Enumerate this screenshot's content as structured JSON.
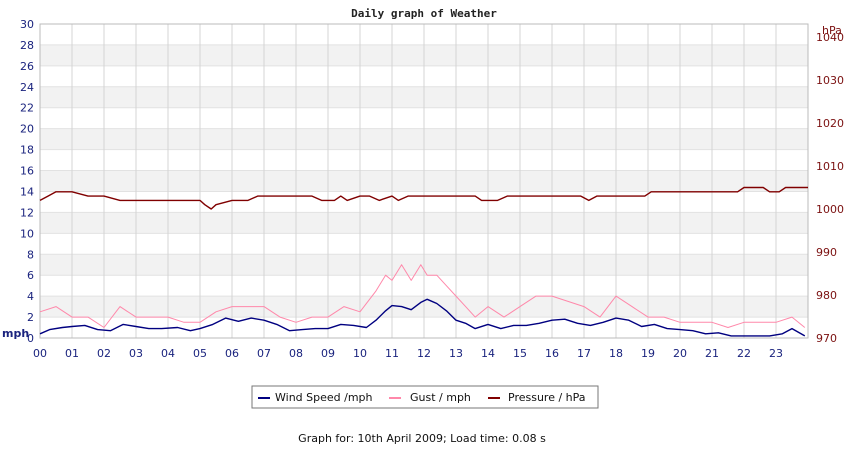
{
  "chart_data": {
    "type": "line",
    "title": "Daily graph of Weather",
    "y_left": {
      "unit": "mph",
      "range": [
        0,
        30
      ],
      "ticks": [
        0,
        2,
        4,
        6,
        8,
        10,
        12,
        14,
        16,
        18,
        20,
        22,
        24,
        26,
        28,
        30
      ]
    },
    "y_right": {
      "unit": "hPa",
      "range": [
        970,
        1043
      ],
      "ticks": [
        970,
        980,
        990,
        1000,
        1010,
        1020,
        1030,
        1040
      ]
    },
    "x_axis": {
      "unit": "hour",
      "range": [
        0,
        24
      ],
      "tick_labels": [
        "00",
        "01",
        "02",
        "03",
        "04",
        "05",
        "06",
        "07",
        "08",
        "09",
        "10",
        "11",
        "12",
        "13",
        "14",
        "15",
        "16",
        "17",
        "18",
        "19",
        "20",
        "21",
        "22",
        "23"
      ]
    },
    "grid": true,
    "legend_position": "bottom",
    "series": [
      {
        "name": "Wind Speed /mph",
        "axis": "left",
        "color": "#000080",
        "points": [
          [
            0,
            0.4
          ],
          [
            0.3,
            0.8
          ],
          [
            0.7,
            1.0
          ],
          [
            1.0,
            1.1
          ],
          [
            1.4,
            1.2
          ],
          [
            1.8,
            0.8
          ],
          [
            2.2,
            0.7
          ],
          [
            2.6,
            1.3
          ],
          [
            3.0,
            1.1
          ],
          [
            3.4,
            0.9
          ],
          [
            3.8,
            0.9
          ],
          [
            4.3,
            1.0
          ],
          [
            4.7,
            0.7
          ],
          [
            5.0,
            0.9
          ],
          [
            5.4,
            1.3
          ],
          [
            5.8,
            1.9
          ],
          [
            6.2,
            1.6
          ],
          [
            6.6,
            1.9
          ],
          [
            7.0,
            1.7
          ],
          [
            7.4,
            1.3
          ],
          [
            7.8,
            0.7
          ],
          [
            8.2,
            0.8
          ],
          [
            8.6,
            0.9
          ],
          [
            9.0,
            0.9
          ],
          [
            9.4,
            1.3
          ],
          [
            9.8,
            1.2
          ],
          [
            10.2,
            1.0
          ],
          [
            10.5,
            1.7
          ],
          [
            10.8,
            2.6
          ],
          [
            11.0,
            3.1
          ],
          [
            11.3,
            3.0
          ],
          [
            11.6,
            2.7
          ],
          [
            11.9,
            3.4
          ],
          [
            12.1,
            3.7
          ],
          [
            12.4,
            3.3
          ],
          [
            12.7,
            2.6
          ],
          [
            13.0,
            1.7
          ],
          [
            13.3,
            1.4
          ],
          [
            13.6,
            0.9
          ],
          [
            14.0,
            1.3
          ],
          [
            14.4,
            0.9
          ],
          [
            14.8,
            1.2
          ],
          [
            15.2,
            1.2
          ],
          [
            15.6,
            1.4
          ],
          [
            16.0,
            1.7
          ],
          [
            16.4,
            1.8
          ],
          [
            16.8,
            1.4
          ],
          [
            17.2,
            1.2
          ],
          [
            17.6,
            1.5
          ],
          [
            18.0,
            1.9
          ],
          [
            18.4,
            1.7
          ],
          [
            18.8,
            1.1
          ],
          [
            19.2,
            1.3
          ],
          [
            19.6,
            0.9
          ],
          [
            20.0,
            0.8
          ],
          [
            20.4,
            0.7
          ],
          [
            20.8,
            0.4
          ],
          [
            21.2,
            0.5
          ],
          [
            21.6,
            0.2
          ],
          [
            22.0,
            0.2
          ],
          [
            22.4,
            0.2
          ],
          [
            22.8,
            0.2
          ],
          [
            23.2,
            0.4
          ],
          [
            23.5,
            0.9
          ],
          [
            23.9,
            0.2
          ]
        ]
      },
      {
        "name": "Gust / mph",
        "axis": "left",
        "color": "#ff88aa",
        "points": [
          [
            0,
            2.5
          ],
          [
            0.5,
            3.0
          ],
          [
            1.0,
            2.0
          ],
          [
            1.5,
            2.0
          ],
          [
            2.0,
            1.0
          ],
          [
            2.5,
            3.0
          ],
          [
            3.0,
            2.0
          ],
          [
            3.5,
            2.0
          ],
          [
            4.0,
            2.0
          ],
          [
            4.5,
            1.5
          ],
          [
            5.0,
            1.5
          ],
          [
            5.5,
            2.5
          ],
          [
            6.0,
            3.0
          ],
          [
            6.5,
            3.0
          ],
          [
            7.0,
            3.0
          ],
          [
            7.5,
            2.0
          ],
          [
            8.0,
            1.5
          ],
          [
            8.5,
            2.0
          ],
          [
            9.0,
            2.0
          ],
          [
            9.5,
            3.0
          ],
          [
            10.0,
            2.5
          ],
          [
            10.5,
            4.5
          ],
          [
            10.8,
            6.0
          ],
          [
            11.0,
            5.5
          ],
          [
            11.3,
            7.0
          ],
          [
            11.6,
            5.5
          ],
          [
            11.9,
            7.0
          ],
          [
            12.1,
            6.0
          ],
          [
            12.4,
            6.0
          ],
          [
            12.7,
            5.0
          ],
          [
            13.0,
            4.0
          ],
          [
            13.3,
            3.0
          ],
          [
            13.6,
            2.0
          ],
          [
            14.0,
            3.0
          ],
          [
            14.5,
            2.0
          ],
          [
            15.0,
            3.0
          ],
          [
            15.5,
            4.0
          ],
          [
            16.0,
            4.0
          ],
          [
            16.5,
            3.5
          ],
          [
            17.0,
            3.0
          ],
          [
            17.5,
            2.0
          ],
          [
            18.0,
            4.0
          ],
          [
            18.5,
            3.0
          ],
          [
            19.0,
            2.0
          ],
          [
            19.5,
            2.0
          ],
          [
            20.0,
            1.5
          ],
          [
            20.5,
            1.5
          ],
          [
            21.0,
            1.5
          ],
          [
            21.5,
            1.0
          ],
          [
            22.0,
            1.5
          ],
          [
            22.5,
            1.5
          ],
          [
            23.0,
            1.5
          ],
          [
            23.5,
            2.0
          ],
          [
            23.9,
            1.0
          ]
        ]
      },
      {
        "name": "Pressure / hPa",
        "axis": "right",
        "color": "#800000",
        "points": [
          [
            0,
            1002
          ],
          [
            0.25,
            1003
          ],
          [
            0.5,
            1004
          ],
          [
            1.0,
            1004
          ],
          [
            1.5,
            1003
          ],
          [
            2.0,
            1003
          ],
          [
            2.5,
            1002
          ],
          [
            3.0,
            1002
          ],
          [
            4.0,
            1002
          ],
          [
            5.0,
            1002
          ],
          [
            5.15,
            1001
          ],
          [
            5.35,
            1000
          ],
          [
            5.5,
            1001
          ],
          [
            6.0,
            1002
          ],
          [
            6.5,
            1002
          ],
          [
            6.8,
            1003
          ],
          [
            7.5,
            1003
          ],
          [
            8.5,
            1003
          ],
          [
            8.8,
            1002
          ],
          [
            9.2,
            1002
          ],
          [
            9.4,
            1003
          ],
          [
            9.6,
            1002
          ],
          [
            10.0,
            1003
          ],
          [
            10.3,
            1003
          ],
          [
            10.6,
            1002
          ],
          [
            11.0,
            1003
          ],
          [
            11.2,
            1002
          ],
          [
            11.5,
            1003
          ],
          [
            12.0,
            1003
          ],
          [
            13.0,
            1003
          ],
          [
            13.6,
            1003
          ],
          [
            13.8,
            1002
          ],
          [
            14.3,
            1002
          ],
          [
            14.6,
            1003
          ],
          [
            15.5,
            1003
          ],
          [
            16.5,
            1003
          ],
          [
            16.9,
            1003
          ],
          [
            17.15,
            1002
          ],
          [
            17.4,
            1003
          ],
          [
            18.5,
            1003
          ],
          [
            18.9,
            1003
          ],
          [
            19.1,
            1004
          ],
          [
            20.0,
            1004
          ],
          [
            21.0,
            1004
          ],
          [
            21.8,
            1004
          ],
          [
            22.0,
            1005
          ],
          [
            22.6,
            1005
          ],
          [
            22.8,
            1004
          ],
          [
            23.1,
            1004
          ],
          [
            23.3,
            1005
          ],
          [
            24.0,
            1005
          ]
        ]
      }
    ]
  },
  "footer": {
    "text": "Graph for: 10th April 2009; Load time: 0.08 s"
  }
}
